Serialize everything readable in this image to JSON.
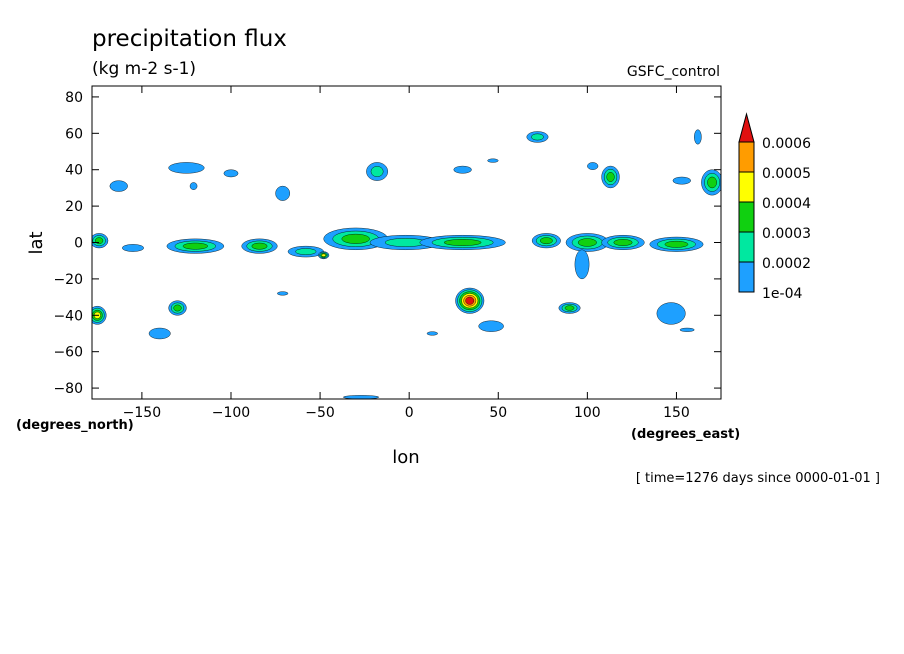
{
  "chart_data": {
    "type": "heatmap",
    "title": "precipitation flux",
    "units": "(kg m-2 s-1)",
    "dataset": "GSFC_control",
    "xlabel": "lon",
    "ylabel": "lat",
    "xunits": "(degrees_east)",
    "yunits": "(degrees_north)",
    "time_label": "[ time=1276 days since 0000-01-01 ]",
    "xlim": [
      -178,
      175
    ],
    "ylim": [
      -86,
      86
    ],
    "xticks": [
      -150,
      -100,
      -50,
      0,
      50,
      100,
      150
    ],
    "yticks": [
      80,
      60,
      40,
      20,
      0,
      -20,
      -40,
      -60,
      -80
    ],
    "colorbar": {
      "levels": [
        "1e-04",
        "0.0002",
        "0.0003",
        "0.0004",
        "0.0005",
        "0.0006"
      ],
      "colors": [
        "#1ea0ff",
        "#00e8a0",
        "#10d010",
        "#ffff00",
        "#ff9c00",
        "#e01010"
      ],
      "extend": "max"
    },
    "blobs": [
      {
        "lon": -174,
        "lat": 1,
        "rx": 5,
        "ry": 4,
        "level": 3
      },
      {
        "lon": -120,
        "lat": -2,
        "rx": 16,
        "ry": 4,
        "level": 3
      },
      {
        "lon": -155,
        "lat": -3,
        "rx": 6,
        "ry": 2,
        "level": 1
      },
      {
        "lon": -84,
        "lat": -2,
        "rx": 10,
        "ry": 4,
        "level": 3
      },
      {
        "lon": -58,
        "lat": -5,
        "rx": 10,
        "ry": 3,
        "level": 2
      },
      {
        "lon": -48,
        "lat": -7,
        "rx": 3,
        "ry": 2,
        "level": 4
      },
      {
        "lon": -30,
        "lat": 2,
        "rx": 18,
        "ry": 6,
        "level": 3
      },
      {
        "lon": -2,
        "lat": 0,
        "rx": 20,
        "ry": 4,
        "level": 2
      },
      {
        "lon": 30,
        "lat": 0,
        "rx": 24,
        "ry": 4,
        "level": 3
      },
      {
        "lon": 77,
        "lat": 1,
        "rx": 8,
        "ry": 4,
        "level": 3
      },
      {
        "lon": 100,
        "lat": 0,
        "rx": 12,
        "ry": 5,
        "level": 3
      },
      {
        "lon": 120,
        "lat": 0,
        "rx": 12,
        "ry": 4,
        "level": 3
      },
      {
        "lon": 150,
        "lat": -1,
        "rx": 15,
        "ry": 4,
        "level": 3
      },
      {
        "lon": 97,
        "lat": -12,
        "rx": 4,
        "ry": 8,
        "level": 1
      },
      {
        "lon": -163,
        "lat": 31,
        "rx": 5,
        "ry": 3,
        "level": 1
      },
      {
        "lon": -125,
        "lat": 41,
        "rx": 10,
        "ry": 3,
        "level": 1
      },
      {
        "lon": -121,
        "lat": 31,
        "rx": 2,
        "ry": 2,
        "level": 1
      },
      {
        "lon": -71,
        "lat": 27,
        "rx": 4,
        "ry": 4,
        "level": 1
      },
      {
        "lon": -18,
        "lat": 39,
        "rx": 6,
        "ry": 5,
        "level": 2
      },
      {
        "lon": 72,
        "lat": 58,
        "rx": 6,
        "ry": 3,
        "level": 2
      },
      {
        "lon": 113,
        "lat": 36,
        "rx": 5,
        "ry": 6,
        "level": 3
      },
      {
        "lon": 170,
        "lat": 33,
        "rx": 6,
        "ry": 7,
        "level": 3
      },
      {
        "lon": 153,
        "lat": 34,
        "rx": 5,
        "ry": 2,
        "level": 1
      },
      {
        "lon": 30,
        "lat": 40,
        "rx": 5,
        "ry": 2,
        "level": 1
      },
      {
        "lon": 34,
        "lat": -32,
        "rx": 8,
        "ry": 7,
        "level": 6
      },
      {
        "lon": 46,
        "lat": -46,
        "rx": 7,
        "ry": 3,
        "level": 1
      },
      {
        "lon": 90,
        "lat": -36,
        "rx": 6,
        "ry": 3,
        "level": 3
      },
      {
        "lon": -130,
        "lat": -36,
        "rx": 5,
        "ry": 4,
        "level": 3
      },
      {
        "lon": -175,
        "lat": -40,
        "rx": 5,
        "ry": 5,
        "level": 4
      },
      {
        "lon": -140,
        "lat": -50,
        "rx": 6,
        "ry": 3,
        "level": 1
      },
      {
        "lon": 147,
        "lat": -39,
        "rx": 8,
        "ry": 6,
        "level": 1
      },
      {
        "lon": -27,
        "lat": -85,
        "rx": 10,
        "ry": 1,
        "level": 1
      },
      {
        "lon": -100,
        "lat": 38,
        "rx": 4,
        "ry": 2,
        "level": 1
      },
      {
        "lon": 103,
        "lat": 42,
        "rx": 3,
        "ry": 2,
        "level": 1
      },
      {
        "lon": 162,
        "lat": 58,
        "rx": 2,
        "ry": 4,
        "level": 1
      },
      {
        "lon": 47,
        "lat": 45,
        "rx": 3,
        "ry": 1,
        "level": 1
      },
      {
        "lon": -71,
        "lat": -28,
        "rx": 3,
        "ry": 1,
        "level": 1
      },
      {
        "lon": 13,
        "lat": -50,
        "rx": 3,
        "ry": 1,
        "level": 1
      },
      {
        "lon": 156,
        "lat": -48,
        "rx": 4,
        "ry": 1,
        "level": 1
      }
    ]
  }
}
